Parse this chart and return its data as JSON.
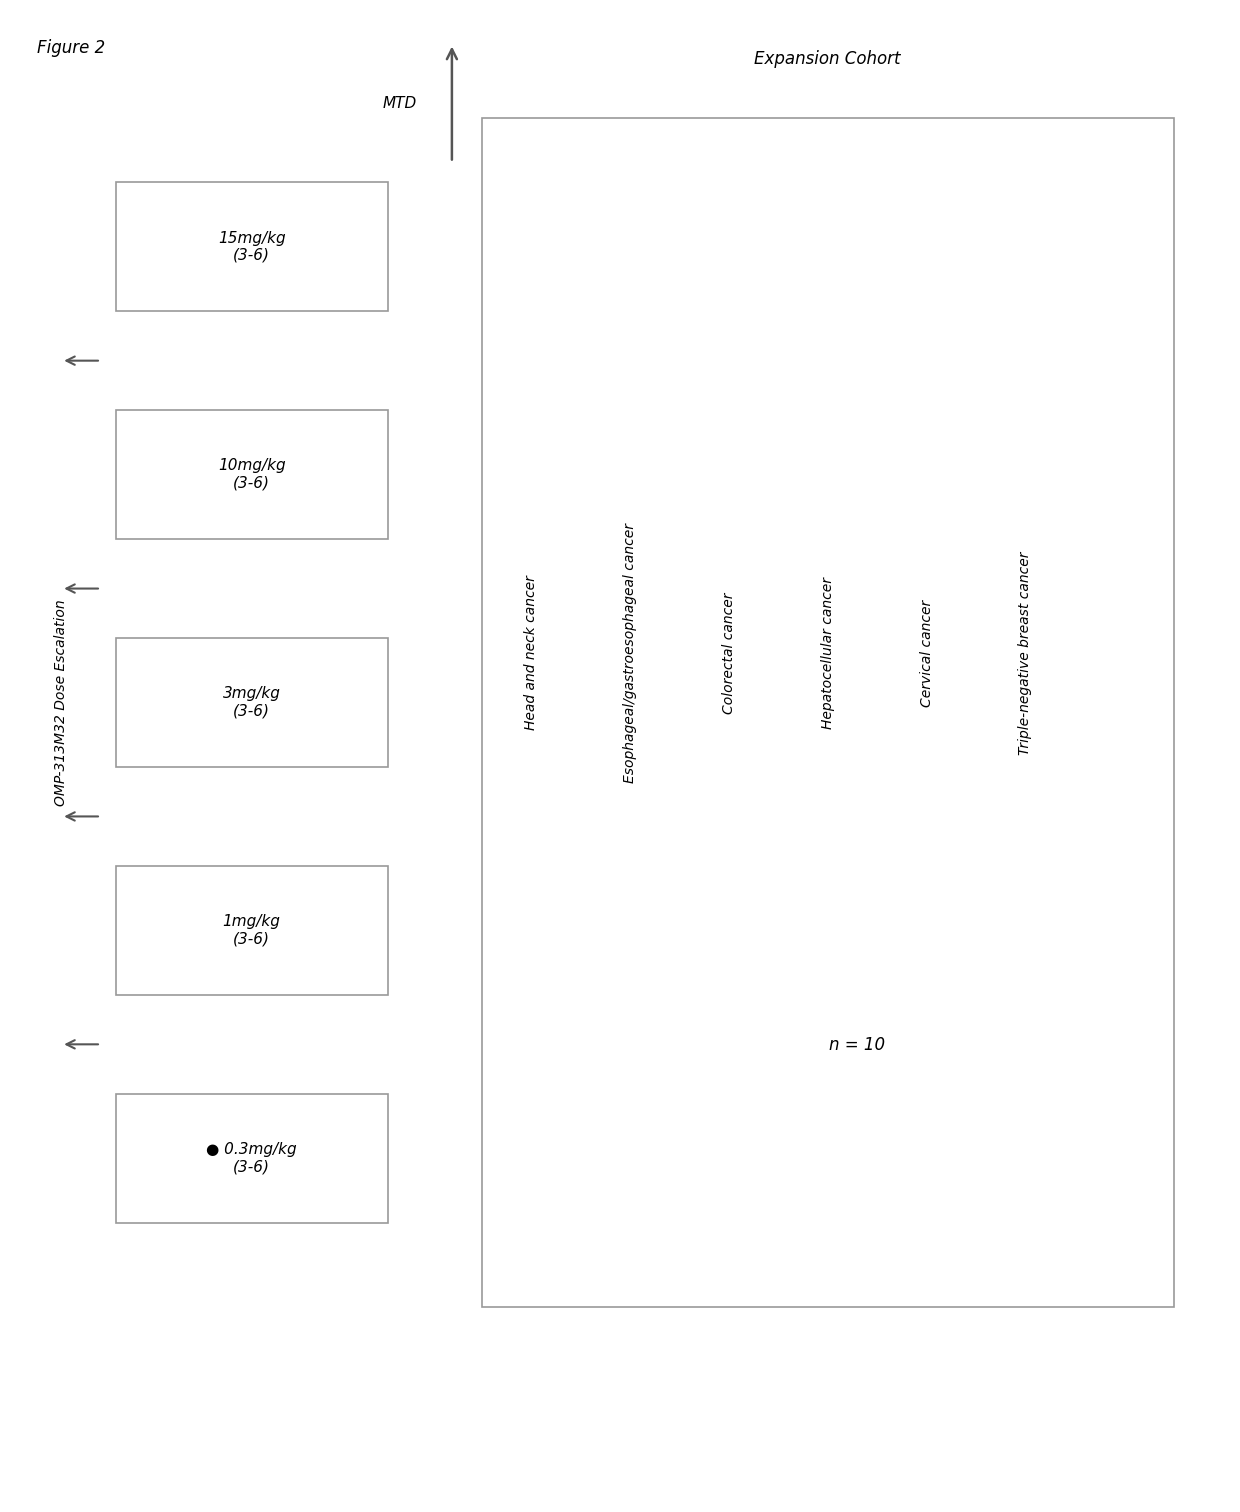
{
  "figure_title": "Figure 2",
  "left_label": "OMP-313M32 Dose Escalation",
  "expansion_cohort_label": "Expansion Cohort",
  "dose_labels": [
    "15mg/kg\n(3-6)",
    "10mg/kg\n(3-6)",
    "3mg/kg\n(3-6)",
    "1mg/kg\n(3-6)",
    "● 0.3mg/kg\n(3-6)"
  ],
  "expansion_lines": [
    "Head and neck cancer",
    "Esophageal/gastroesophageal cancer",
    "Colorectal cancer",
    "Hepatocellular cancer",
    "Cervical cancer",
    "Triple-negative breast cancer"
  ],
  "n_label": "n = 10",
  "mtd_label": "MTD",
  "bg_color": "#ffffff",
  "box_edge_color": "#999999",
  "text_color": "#000000",
  "arrow_color": "#555555",
  "font_size": 10,
  "title_font_size": 12,
  "label_font_size": 10
}
